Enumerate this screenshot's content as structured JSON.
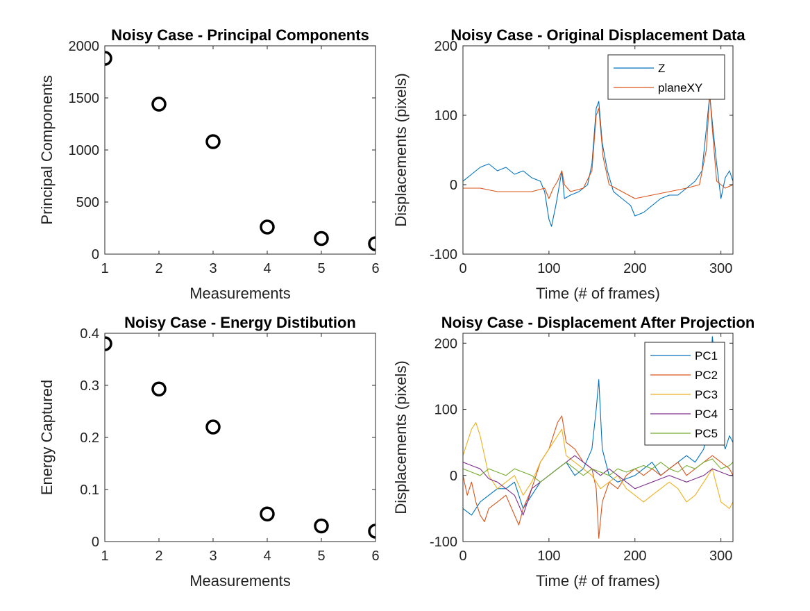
{
  "figure": {
    "background": "#ffffff"
  },
  "colors": {
    "marker": "#000000",
    "axis": "#262626",
    "legend_border": "#262626"
  },
  "chart_data": [
    {
      "id": "pc",
      "type": "scatter",
      "title": "Noisy Case - Principal Components",
      "xlabel": "Measurements",
      "ylabel": "Principal Components",
      "xlim": [
        1,
        6
      ],
      "ylim": [
        0,
        2000
      ],
      "xticks": [
        1,
        2,
        3,
        4,
        5,
        6
      ],
      "yticks": [
        0,
        500,
        1000,
        1500,
        2000
      ],
      "grid": false,
      "legend": null,
      "marker": "circle-open",
      "x": [
        1,
        2,
        3,
        4,
        5,
        6
      ],
      "y": [
        1880,
        1440,
        1080,
        260,
        150,
        100
      ]
    },
    {
      "id": "orig",
      "type": "line",
      "title": "Noisy Case - Original Displacement Data",
      "xlabel": "Time (# of frames)",
      "ylabel": "Displacements (pixels)",
      "xlim": [
        0,
        314
      ],
      "ylim": [
        -100,
        200
      ],
      "xticks": [
        0,
        100,
        200,
        300
      ],
      "yticks": [
        -100,
        0,
        100,
        200
      ],
      "grid": false,
      "legend": "top-right",
      "series": [
        {
          "name": "Z",
          "color": "#0072BD",
          "x": [
            0,
            10,
            20,
            30,
            40,
            50,
            60,
            70,
            80,
            90,
            95,
            100,
            103,
            108,
            115,
            118,
            125,
            135,
            145,
            150,
            155,
            158,
            162,
            168,
            175,
            185,
            195,
            200,
            210,
            220,
            230,
            240,
            250,
            260,
            270,
            278,
            283,
            287,
            290,
            295,
            300,
            305,
            310,
            314
          ],
          "y": [
            5,
            15,
            25,
            30,
            20,
            25,
            15,
            20,
            10,
            5,
            -10,
            -50,
            -60,
            -30,
            20,
            -20,
            -15,
            -10,
            0,
            30,
            110,
            120,
            60,
            20,
            -10,
            -20,
            -30,
            -45,
            -40,
            -30,
            -20,
            -15,
            -15,
            -5,
            5,
            20,
            80,
            130,
            90,
            30,
            -20,
            10,
            20,
            5
          ]
        },
        {
          "name": "planeXY",
          "color": "#D95319",
          "x": [
            0,
            20,
            40,
            60,
            80,
            95,
            100,
            105,
            110,
            115,
            118,
            125,
            140,
            150,
            155,
            158,
            163,
            170,
            185,
            200,
            220,
            240,
            260,
            275,
            283,
            287,
            290,
            295,
            305,
            314
          ],
          "y": [
            -5,
            -5,
            -10,
            -10,
            -10,
            -5,
            -20,
            -5,
            5,
            20,
            0,
            -10,
            -5,
            20,
            100,
            110,
            40,
            0,
            -10,
            -20,
            -15,
            -10,
            -5,
            0,
            50,
            130,
            80,
            5,
            -5,
            0
          ]
        }
      ]
    },
    {
      "id": "energy",
      "type": "scatter",
      "title": "Noisy Case - Energy Distibution",
      "xlabel": "Measurements",
      "ylabel": "Energy Captured",
      "xlim": [
        1,
        6
      ],
      "ylim": [
        0,
        0.4
      ],
      "xticks": [
        1,
        2,
        3,
        4,
        5,
        6
      ],
      "yticks": [
        0,
        0.1,
        0.2,
        0.3,
        0.4
      ],
      "grid": false,
      "legend": null,
      "marker": "circle-open",
      "x": [
        1,
        2,
        3,
        4,
        5,
        6
      ],
      "y": [
        0.38,
        0.293,
        0.22,
        0.053,
        0.03,
        0.02
      ]
    },
    {
      "id": "proj",
      "type": "line",
      "title": "Noisy Case - Displacement After Projection",
      "xlabel": "Time (# of frames)",
      "ylabel": "Displacements (pixels)",
      "xlim": [
        0,
        314
      ],
      "ylim": [
        -100,
        215
      ],
      "xticks": [
        0,
        100,
        200,
        300
      ],
      "yticks": [
        -100,
        0,
        100,
        200
      ],
      "grid": false,
      "legend": "top-right",
      "series": [
        {
          "name": "PC1",
          "color": "#0072BD",
          "x": [
            0,
            10,
            20,
            30,
            40,
            50,
            60,
            70,
            80,
            90,
            100,
            110,
            120,
            130,
            140,
            150,
            155,
            158,
            162,
            170,
            180,
            190,
            200,
            210,
            220,
            230,
            240,
            250,
            260,
            270,
            280,
            285,
            290,
            295,
            300,
            305,
            310,
            314
          ],
          "y": [
            -50,
            -60,
            -40,
            -30,
            -20,
            -20,
            -10,
            -50,
            -30,
            -10,
            0,
            10,
            20,
            0,
            10,
            40,
            100,
            145,
            40,
            0,
            -10,
            -5,
            0,
            10,
            20,
            0,
            10,
            20,
            30,
            20,
            40,
            80,
            210,
            150,
            60,
            40,
            60,
            50
          ]
        },
        {
          "name": "PC2",
          "color": "#D95319",
          "x": [
            0,
            5,
            10,
            15,
            20,
            25,
            30,
            40,
            50,
            60,
            65,
            70,
            80,
            90,
            100,
            110,
            115,
            120,
            130,
            140,
            150,
            155,
            158,
            162,
            170,
            180,
            190,
            200,
            210,
            220,
            230,
            240,
            250,
            260,
            270,
            280,
            290,
            300,
            310,
            314
          ],
          "y": [
            0,
            -30,
            -10,
            -40,
            -60,
            -70,
            -50,
            -40,
            -30,
            -60,
            -75,
            -50,
            -20,
            20,
            40,
            80,
            90,
            50,
            40,
            20,
            10,
            -20,
            -95,
            -40,
            -10,
            -20,
            0,
            10,
            0,
            10,
            0,
            10,
            20,
            0,
            10,
            20,
            30,
            20,
            10,
            0
          ]
        },
        {
          "name": "PC3",
          "color": "#EDB120",
          "x": [
            0,
            5,
            10,
            15,
            20,
            25,
            30,
            40,
            50,
            60,
            70,
            80,
            90,
            100,
            110,
            115,
            120,
            130,
            140,
            150,
            160,
            170,
            180,
            190,
            200,
            210,
            220,
            230,
            240,
            250,
            260,
            270,
            280,
            290,
            300,
            310,
            314
          ],
          "y": [
            30,
            50,
            70,
            80,
            60,
            30,
            0,
            -20,
            -10,
            0,
            -30,
            -10,
            20,
            40,
            60,
            70,
            30,
            20,
            10,
            0,
            -20,
            -10,
            0,
            -20,
            -30,
            -40,
            -30,
            -20,
            -10,
            -20,
            -40,
            -30,
            -10,
            10,
            -40,
            -50,
            -40
          ]
        },
        {
          "name": "PC4",
          "color": "#7E2F8E",
          "x": [
            0,
            10,
            20,
            30,
            40,
            50,
            60,
            70,
            80,
            90,
            100,
            110,
            120,
            130,
            140,
            150,
            160,
            170,
            180,
            190,
            200,
            210,
            220,
            230,
            240,
            250,
            260,
            270,
            280,
            290,
            300,
            310,
            314
          ],
          "y": [
            20,
            15,
            10,
            -5,
            -10,
            -20,
            -30,
            -60,
            -20,
            -10,
            0,
            10,
            20,
            30,
            20,
            10,
            0,
            10,
            0,
            -10,
            -20,
            -15,
            -10,
            -5,
            0,
            -5,
            -10,
            -5,
            0,
            10,
            5,
            0,
            0
          ]
        },
        {
          "name": "PC5",
          "color": "#77AC30",
          "x": [
            0,
            10,
            20,
            30,
            40,
            50,
            60,
            70,
            80,
            90,
            100,
            110,
            120,
            130,
            140,
            150,
            160,
            170,
            180,
            190,
            200,
            210,
            220,
            230,
            240,
            250,
            260,
            270,
            280,
            290,
            300,
            310,
            314
          ],
          "y": [
            10,
            5,
            0,
            10,
            5,
            0,
            10,
            5,
            0,
            -10,
            0,
            10,
            20,
            10,
            0,
            10,
            5,
            0,
            10,
            5,
            10,
            15,
            10,
            20,
            10,
            5,
            15,
            10,
            20,
            25,
            10,
            15,
            20
          ]
        }
      ]
    }
  ]
}
